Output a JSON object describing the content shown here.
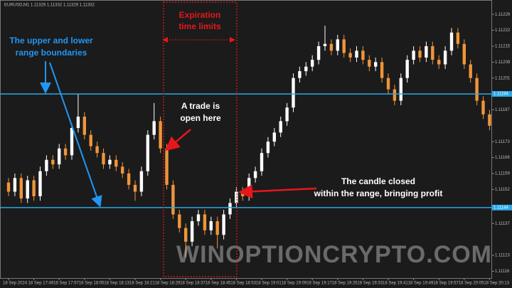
{
  "chart_data": {
    "type": "candlestick",
    "header": "EURUSD,M1  1.11329 1.11332 1.11329 1.11332",
    "categories": [
      "18 Sep 2024",
      null,
      null,
      null,
      "18 Sep 17:49",
      null,
      null,
      null,
      "18 Sep 17:57",
      null,
      null,
      null,
      "18 Sep 18:05",
      null,
      null,
      null,
      "18 Sep 18:13",
      null,
      null,
      null,
      "18 Sep 18:21",
      null,
      null,
      null,
      "18 Sep 18:29",
      null,
      null,
      null,
      "18 Sep 18:37",
      null,
      null,
      null,
      "18 Sep 18:45",
      null,
      null,
      null,
      "18 Sep 18:53",
      null,
      null,
      null,
      "18 Sep 19:01",
      null,
      null,
      null,
      "18 Sep 19:09",
      null,
      null,
      null,
      "18 Sep 19:17",
      null,
      null,
      null,
      "18 Sep 19:25",
      null,
      null,
      null,
      "18 Sep 19:33",
      null,
      null,
      null,
      "18 Sep 19:41",
      null,
      null,
      null,
      "18 Sep 19:49",
      null,
      null,
      null,
      "18 Sep 19:57",
      null,
      null,
      null,
      "18 Sep 20:05",
      null,
      null,
      null,
      "18 Sep 20:13"
    ],
    "open": [
      1.11155,
      1.11151,
      1.11157,
      1.11148,
      1.11156,
      1.11149,
      1.1116,
      1.11165,
      1.11163,
      1.1117,
      1.11167,
      1.11179,
      1.11184,
      1.11176,
      1.11171,
      1.11168,
      1.11163,
      1.11165,
      1.11162,
      1.11159,
      1.11154,
      1.11151,
      1.1116,
      1.11176,
      1.11182,
      1.1117,
      1.11154,
      1.11141,
      1.11135,
      1.11129,
      1.11138,
      1.11141,
      1.11134,
      1.11138,
      1.11132,
      1.11141,
      1.11146,
      1.11151,
      1.11149,
      1.11157,
      1.1116,
      1.11168,
      1.11173,
      1.11177,
      1.11182,
      1.11188,
      1.11201,
      1.11204,
      1.11206,
      1.11209,
      1.11215,
      1.11216,
      1.11213,
      1.11218,
      1.11212,
      1.1121,
      1.11213,
      1.11209,
      1.11206,
      1.11208,
      1.11201,
      1.11196,
      1.11191,
      1.11201,
      1.11209,
      1.11213,
      1.1121,
      1.11215,
      1.11209,
      1.11207,
      1.11213,
      1.11221,
      1.11216,
      1.11207,
      1.11201,
      1.11191,
      1.11185
    ],
    "high": [
      1.11157,
      1.11159,
      1.11159,
      1.11158,
      1.11158,
      1.11162,
      1.11167,
      1.11167,
      1.11172,
      1.11172,
      1.11181,
      1.11194,
      1.11186,
      1.11178,
      1.11173,
      1.1117,
      1.11167,
      1.11167,
      1.11164,
      1.11161,
      1.11156,
      1.11162,
      1.11178,
      1.1119,
      1.11184,
      1.11172,
      1.11156,
      1.11143,
      1.11137,
      1.1114,
      1.11143,
      1.11143,
      1.1114,
      1.1114,
      1.11143,
      1.11148,
      1.11153,
      1.11153,
      1.11159,
      1.11162,
      1.1117,
      1.11175,
      1.11179,
      1.11184,
      1.1119,
      1.11203,
      1.11206,
      1.11208,
      1.11211,
      1.11217,
      1.11224,
      1.11218,
      1.1122,
      1.1122,
      1.11214,
      1.11215,
      1.11215,
      1.11211,
      1.1121,
      1.1121,
      1.11203,
      1.11198,
      1.11203,
      1.11211,
      1.11215,
      1.11215,
      1.11217,
      1.11217,
      1.11211,
      1.11215,
      1.11223,
      1.11223,
      1.11218,
      1.11209,
      1.11203,
      1.11193,
      1.11187
    ],
    "low": [
      1.11149,
      1.11149,
      1.11146,
      1.11146,
      1.11147,
      1.11147,
      1.11158,
      1.11161,
      1.11161,
      1.11165,
      1.11165,
      1.11177,
      1.11174,
      1.11169,
      1.11166,
      1.11161,
      1.11161,
      1.1116,
      1.11157,
      1.11152,
      1.11147,
      1.11149,
      1.11158,
      1.11174,
      1.11168,
      1.11152,
      1.11139,
      1.11133,
      1.11122,
      1.11127,
      1.11136,
      1.11132,
      1.11132,
      1.11126,
      1.1113,
      1.11139,
      1.11144,
      1.11147,
      1.11147,
      1.11155,
      1.11158,
      1.11166,
      1.11171,
      1.11175,
      1.1118,
      1.11186,
      1.11199,
      1.11202,
      1.11204,
      1.11207,
      1.11213,
      1.11211,
      1.11211,
      1.1121,
      1.11208,
      1.11208,
      1.11207,
      1.11204,
      1.11204,
      1.11199,
      1.11194,
      1.11189,
      1.11189,
      1.11199,
      1.11207,
      1.11208,
      1.11208,
      1.11207,
      1.11205,
      1.11205,
      1.11211,
      1.11214,
      1.11205,
      1.11199,
      1.11189,
      1.11183,
      1.11178
    ],
    "close": [
      1.11151,
      1.11157,
      1.11148,
      1.11156,
      1.11149,
      1.1116,
      1.11165,
      1.11163,
      1.1117,
      1.11167,
      1.11179,
      1.11184,
      1.11176,
      1.11171,
      1.11168,
      1.11163,
      1.11165,
      1.11162,
      1.11159,
      1.11154,
      1.11151,
      1.1116,
      1.11176,
      1.11182,
      1.1117,
      1.11154,
      1.11141,
      1.11135,
      1.11129,
      1.11138,
      1.11141,
      1.11134,
      1.11138,
      1.11132,
      1.11141,
      1.11146,
      1.11151,
      1.11149,
      1.11157,
      1.1116,
      1.11168,
      1.11173,
      1.11177,
      1.11182,
      1.11188,
      1.11201,
      1.11204,
      1.11206,
      1.11209,
      1.11215,
      1.11216,
      1.11213,
      1.11218,
      1.11212,
      1.1121,
      1.11213,
      1.11209,
      1.11206,
      1.11208,
      1.11201,
      1.11196,
      1.11191,
      1.11201,
      1.11209,
      1.11213,
      1.1121,
      1.11215,
      1.11209,
      1.11207,
      1.11213,
      1.11221,
      1.11216,
      1.11207,
      1.11201,
      1.11191,
      1.11185,
      1.1118
    ],
    "up_color": "#ffffff",
    "down_color": "#f0953a",
    "ylim": [
      1.11113,
      1.11235
    ],
    "yticks": [
      1.11229,
      1.11222,
      1.11215,
      1.11208,
      1.11201,
      1.11187,
      1.11173,
      1.11166,
      1.11159,
      1.11152,
      1.11137,
      1.11123,
      1.11116
    ],
    "levels": [
      1.11194,
      1.11144
    ],
    "level_color": "#2aa8e8",
    "annotations": {
      "expiration": [
        "Expiration",
        "time limits"
      ],
      "boundaries": [
        "The upper and lower",
        "range boundaries"
      ],
      "trade_open": [
        "A trade is",
        "open here"
      ],
      "candle_closed": [
        "The candle closed",
        "within the range, bringing profit"
      ]
    },
    "watermark": "WINOPTIONCRYPTO.COM"
  }
}
